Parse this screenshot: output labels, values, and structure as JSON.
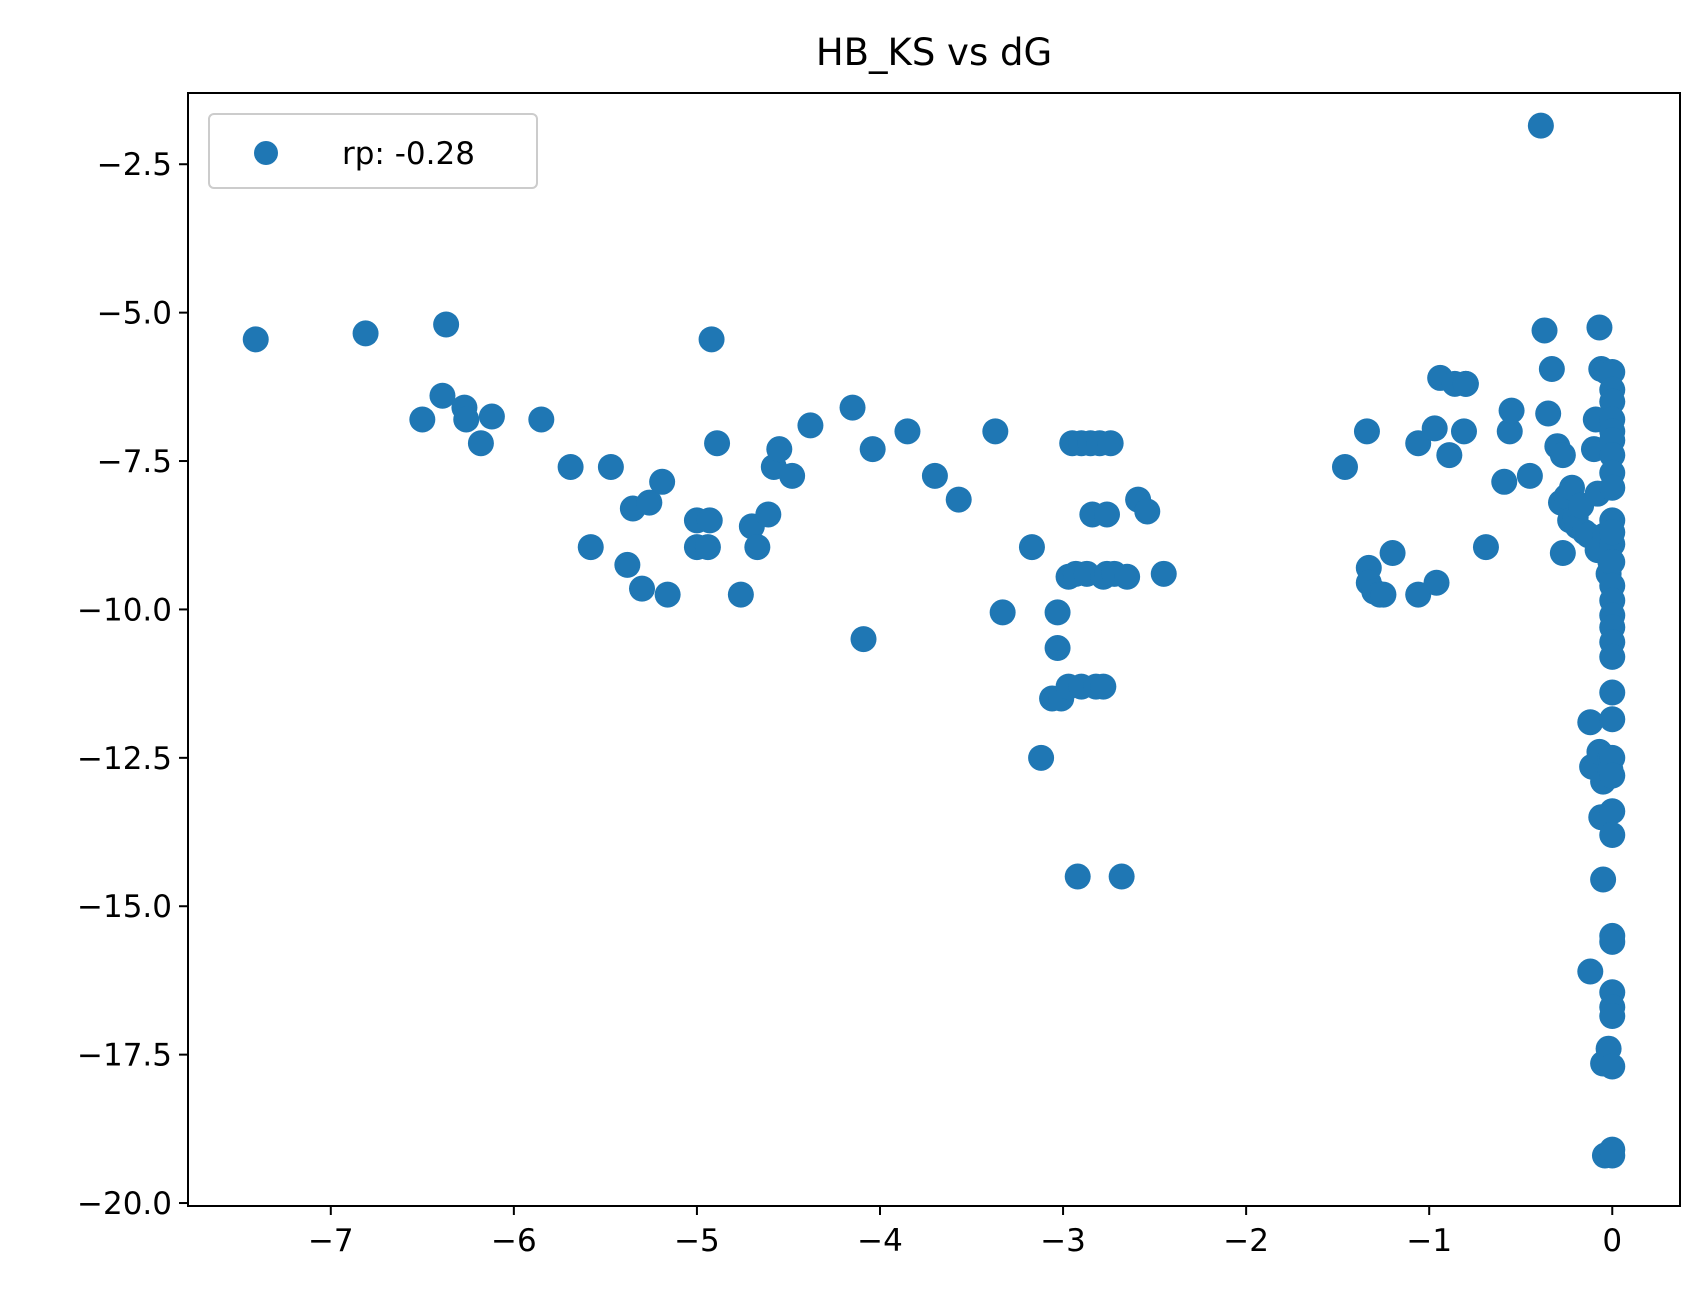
{
  "chart_data": {
    "type": "scatter",
    "title": "HB_KS vs dG",
    "xlabel": "",
    "ylabel": "",
    "xlim": [
      -7.78,
      0.37
    ],
    "ylim": [
      -20.05,
      -1.3
    ],
    "xticks": [
      -7,
      -6,
      -5,
      -4,
      -3,
      -2,
      -1,
      0
    ],
    "yticks": [
      -2.5,
      -5.0,
      -7.5,
      -10.0,
      -12.5,
      -15.0,
      -17.5,
      -20.0
    ],
    "grid": false,
    "legend": {
      "placement": "top-left",
      "entries": [
        "rp: -0.28"
      ]
    },
    "series": [
      {
        "name": "rp: -0.28",
        "color": "#1f77b4",
        "x": [
          -7.41,
          -6.81,
          -6.5,
          -6.39,
          -6.37,
          -6.27,
          -6.26,
          -6.18,
          -6.12,
          -5.85,
          -5.69,
          -5.58,
          -5.47,
          -5.38,
          -5.35,
          -5.3,
          -5.26,
          -5.19,
          -5.16,
          -5.0,
          -5.0,
          -4.94,
          -4.93,
          -4.92,
          -4.89,
          -4.76,
          -4.7,
          -4.67,
          -4.61,
          -4.58,
          -4.55,
          -4.48,
          -4.38,
          -4.15,
          -4.09,
          -4.04,
          -3.85,
          -3.7,
          -3.57,
          -3.37,
          -3.33,
          -3.17,
          -3.12,
          -3.06,
          -3.03,
          -3.03,
          -3.01,
          -2.97,
          -2.97,
          -2.95,
          -2.93,
          -2.92,
          -2.9,
          -2.9,
          -2.87,
          -2.85,
          -2.84,
          -2.82,
          -2.8,
          -2.78,
          -2.78,
          -2.76,
          -2.76,
          -2.74,
          -2.72,
          -2.68,
          -2.65,
          -2.59,
          -2.54,
          -2.45,
          -1.46,
          -1.34,
          -1.33,
          -1.33,
          -1.3,
          -1.27,
          -1.25,
          -1.2,
          -1.06,
          -1.06,
          -0.97,
          -0.96,
          -0.94,
          -0.89,
          -0.86,
          -0.81,
          -0.8,
          -0.8,
          -0.69,
          -0.59,
          -0.56,
          -0.55,
          -0.45,
          -0.39,
          -0.37,
          -0.35,
          -0.33,
          -0.3,
          -0.28,
          -0.27,
          -0.27,
          -0.25,
          -0.23,
          -0.22,
          -0.2,
          -0.19,
          -0.17,
          -0.15,
          -0.13,
          -0.12,
          -0.12,
          -0.11,
          -0.1,
          -0.09,
          -0.08,
          -0.08,
          -0.07,
          -0.07,
          -0.06,
          -0.06,
          -0.05,
          -0.05,
          -0.05,
          -0.04,
          -0.04,
          -0.03,
          -0.02,
          -0.02,
          -0.01,
          -0.01,
          -0.01,
          0.0,
          0.0,
          0.0,
          0.0,
          0.0,
          0.0,
          0.0,
          0.0,
          0.0,
          0.0,
          0.0,
          0.0,
          0.0,
          0.0,
          0.0,
          0.0,
          0.0,
          0.0,
          0.0,
          0.0,
          0.0,
          0.0,
          0.0,
          0.0,
          0.0,
          0.0,
          0.0,
          0.0,
          0.0,
          0.0,
          0.0,
          0.0,
          0.0
        ],
        "y": [
          -5.45,
          -5.35,
          -6.8,
          -6.4,
          -5.2,
          -6.6,
          -6.8,
          -7.2,
          -6.75,
          -6.8,
          -7.6,
          -8.95,
          -7.6,
          -9.25,
          -8.3,
          -9.65,
          -8.2,
          -7.85,
          -9.75,
          -8.5,
          -8.95,
          -8.95,
          -8.5,
          -5.45,
          -7.2,
          -9.75,
          -8.6,
          -8.95,
          -8.4,
          -7.6,
          -7.3,
          -7.75,
          -6.9,
          -6.6,
          -10.5,
          -7.3,
          -7.0,
          -7.75,
          -8.15,
          -7.0,
          -10.05,
          -8.95,
          -12.5,
          -11.5,
          -10.65,
          -10.05,
          -11.5,
          -9.45,
          -11.3,
          -7.2,
          -9.4,
          -14.5,
          -7.2,
          -11.3,
          -9.4,
          -7.2,
          -8.4,
          -11.3,
          -7.2,
          -9.45,
          -11.3,
          -8.4,
          -9.4,
          -7.2,
          -9.4,
          -14.5,
          -9.45,
          -8.15,
          -8.35,
          -9.4,
          -7.6,
          -7.0,
          -9.3,
          -9.55,
          -9.7,
          -9.75,
          -9.75,
          -9.05,
          -7.2,
          -9.75,
          -6.95,
          -9.55,
          -6.1,
          -7.4,
          -6.2,
          -7.0,
          -6.2,
          -6.2,
          -8.95,
          -7.85,
          -7.0,
          -6.65,
          -7.75,
          -1.85,
          -5.3,
          -6.7,
          -5.95,
          -7.25,
          -8.2,
          -7.4,
          -9.05,
          -8.1,
          -8.5,
          -7.95,
          -8.45,
          -8.6,
          -8.25,
          -8.7,
          -8.75,
          -11.9,
          -16.1,
          -12.65,
          -7.3,
          -6.8,
          -8.05,
          -9.0,
          -12.4,
          -5.25,
          -13.5,
          -5.95,
          -14.55,
          -17.65,
          -12.9,
          -19.2,
          -8.75,
          -6.0,
          -17.4,
          -9.4,
          -12.7,
          -9.2,
          -12.5,
          -19.2,
          -8.9,
          -6.0,
          -6.3,
          -6.5,
          -6.8,
          -7.0,
          -7.15,
          -7.4,
          -7.7,
          -7.95,
          -8.5,
          -8.7,
          -9.2,
          -9.6,
          -9.85,
          -10.1,
          -10.3,
          -10.55,
          -10.8,
          -11.4,
          -11.85,
          -12.5,
          -12.8,
          -13.4,
          -13.8,
          -15.5,
          -15.6,
          -16.45,
          -16.7,
          -16.85,
          -17.7,
          -19.1
        ]
      }
    ]
  }
}
